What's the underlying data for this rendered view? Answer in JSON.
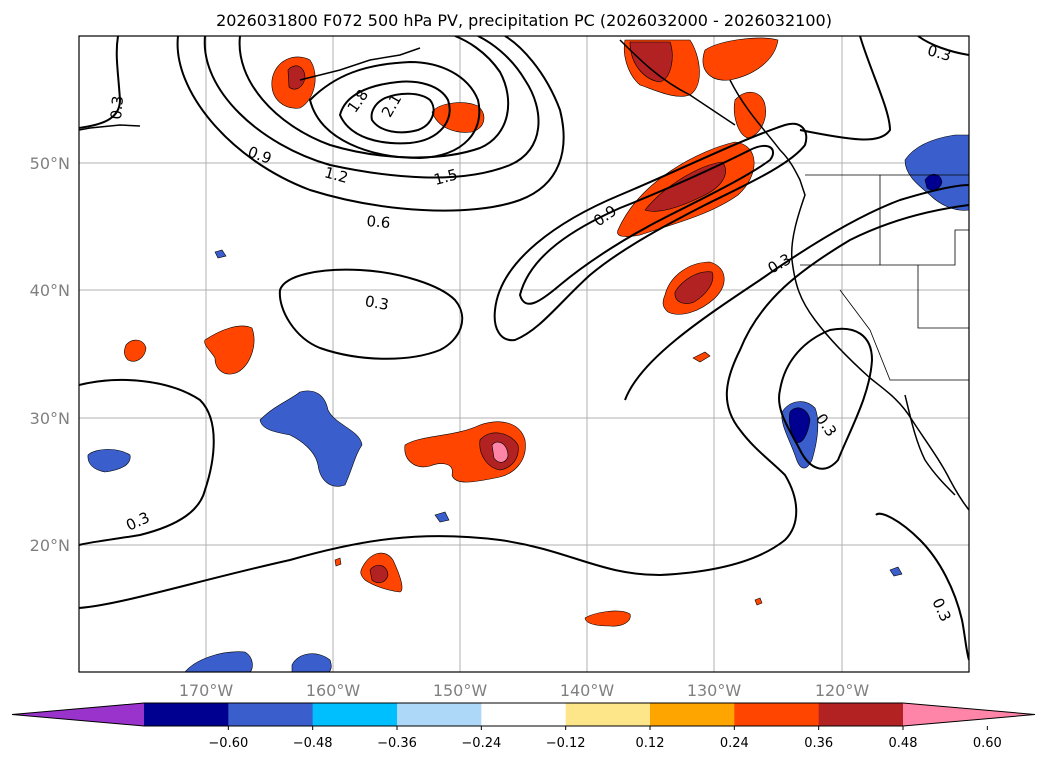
{
  "title": "2026031800 F072 500 hPa PV, precipitation PC (2026032000 - 2026032100)",
  "lat_labels": [
    "50°N",
    "40°N",
    "30°N",
    "20°N"
  ],
  "lon_labels": [
    "170°W",
    "160°W",
    "150°W",
    "140°W",
    "130°W",
    "120°W"
  ],
  "colorbar": {
    "ticks": [
      "−0.60",
      "−0.48",
      "−0.36",
      "−0.24",
      "−0.12",
      "0.12",
      "0.24",
      "0.36",
      "0.48",
      "0.60"
    ],
    "colors": [
      "#9933cc",
      "#000090",
      "#3a5fcd",
      "#00bfff",
      "#add8f7",
      "#ffffff",
      "#fde68a",
      "#ffa500",
      "#ff4500",
      "#b22222",
      "#ff85a8"
    ]
  },
  "contour_labels": [
    "0.3",
    "0.3",
    "0.3",
    "0.3",
    "0.3",
    "0.3",
    "0.3",
    "0.6",
    "0.9",
    "0.9",
    "1.2",
    "1.5",
    "1.8",
    "2.1"
  ]
}
